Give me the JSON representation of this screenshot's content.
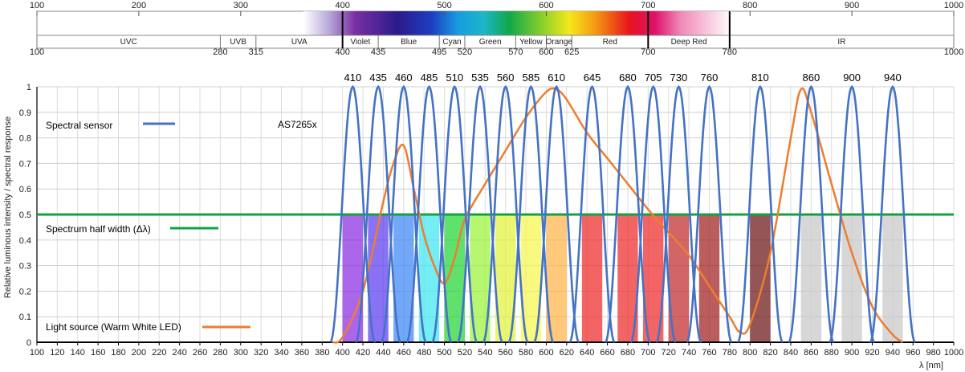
{
  "spectrum_bar": {
    "top_ticks": [
      "100",
      "200",
      "300",
      "400",
      "500",
      "600",
      "700",
      "800",
      "900",
      "1000"
    ],
    "bottom_ticks": [
      "100",
      "280",
      "315",
      "400",
      "435",
      "495",
      "520",
      "570",
      "600",
      "625",
      "700",
      "780",
      "1000"
    ],
    "bands": [
      "UVC",
      "UVB",
      "UVA",
      "Violet",
      "Blue",
      "Cyan",
      "Green",
      "Yellow",
      "Orange",
      "Red",
      "Deep Red",
      "IR"
    ]
  },
  "chart_data": {
    "type": "line",
    "xlabel": "λ [nm]",
    "ylabel": "Relative luminous intensity / spectral response",
    "xlim": [
      100,
      1000
    ],
    "ylim": [
      0,
      1
    ],
    "x_ticks": [
      "100",
      "120",
      "140",
      "160",
      "180",
      "200",
      "220",
      "240",
      "260",
      "280",
      "300",
      "320",
      "340",
      "360",
      "380",
      "400",
      "420",
      "440",
      "460",
      "480",
      "500",
      "520",
      "540",
      "560",
      "580",
      "600",
      "620",
      "640",
      "660",
      "680",
      "700",
      "720",
      "740",
      "760",
      "780",
      "800",
      "820",
      "840",
      "860",
      "880",
      "900",
      "920",
      "940",
      "960",
      "980",
      "1000"
    ],
    "y_ticks": [
      "0",
      "0.1",
      "0.2",
      "0.3",
      "0.4",
      "0.5",
      "0.6",
      "0.7",
      "0.8",
      "0.9",
      "1"
    ],
    "channel_centers": [
      "410",
      "435",
      "460",
      "485",
      "510",
      "535",
      "560",
      "585",
      "610",
      "645",
      "680",
      "705",
      "730",
      "760",
      "810",
      "860",
      "900",
      "940"
    ],
    "channel_colors": [
      "#8a2be2",
      "#5b3cf0",
      "#3d86f5",
      "#3fe6f0",
      "#22d433",
      "#9bf23a",
      "#e2f23a",
      "#f7f54e",
      "#ffb347",
      "#ee2a2a",
      "#ee2a2a",
      "#ee2a2a",
      "#c02a2a",
      "#a01e1e",
      "#6a1414",
      "#c8c8c8",
      "#c8c8c8",
      "#c8c8c8"
    ],
    "half_width_level": 0.5,
    "annotation": "AS7265x",
    "series": [
      {
        "name": "Spectral sensor",
        "color": "#4472c4"
      },
      {
        "name": "Spectrum half width (Δλ)",
        "color": "#12a33a",
        "value": 0.5
      },
      {
        "name": "Light source (Warm White LED)",
        "color": "#ed7d31",
        "x": [
          390,
          400,
          420,
          440,
          450,
          460,
          470,
          480,
          490,
          500,
          510,
          520,
          540,
          560,
          580,
          600,
          610,
          620,
          640,
          660,
          680,
          700,
          720,
          740,
          760,
          780,
          790,
          800,
          820,
          840,
          850,
          860,
          880,
          900,
          920,
          940,
          950
        ],
        "y": [
          0,
          0.02,
          0.2,
          0.55,
          0.7,
          0.77,
          0.6,
          0.42,
          0.3,
          0.23,
          0.33,
          0.48,
          0.62,
          0.75,
          0.88,
          0.98,
          0.99,
          0.95,
          0.82,
          0.72,
          0.62,
          0.52,
          0.43,
          0.34,
          0.22,
          0.1,
          0.04,
          0.07,
          0.35,
          0.8,
          0.99,
          0.9,
          0.62,
          0.35,
          0.14,
          0.03,
          0
        ]
      }
    ]
  }
}
